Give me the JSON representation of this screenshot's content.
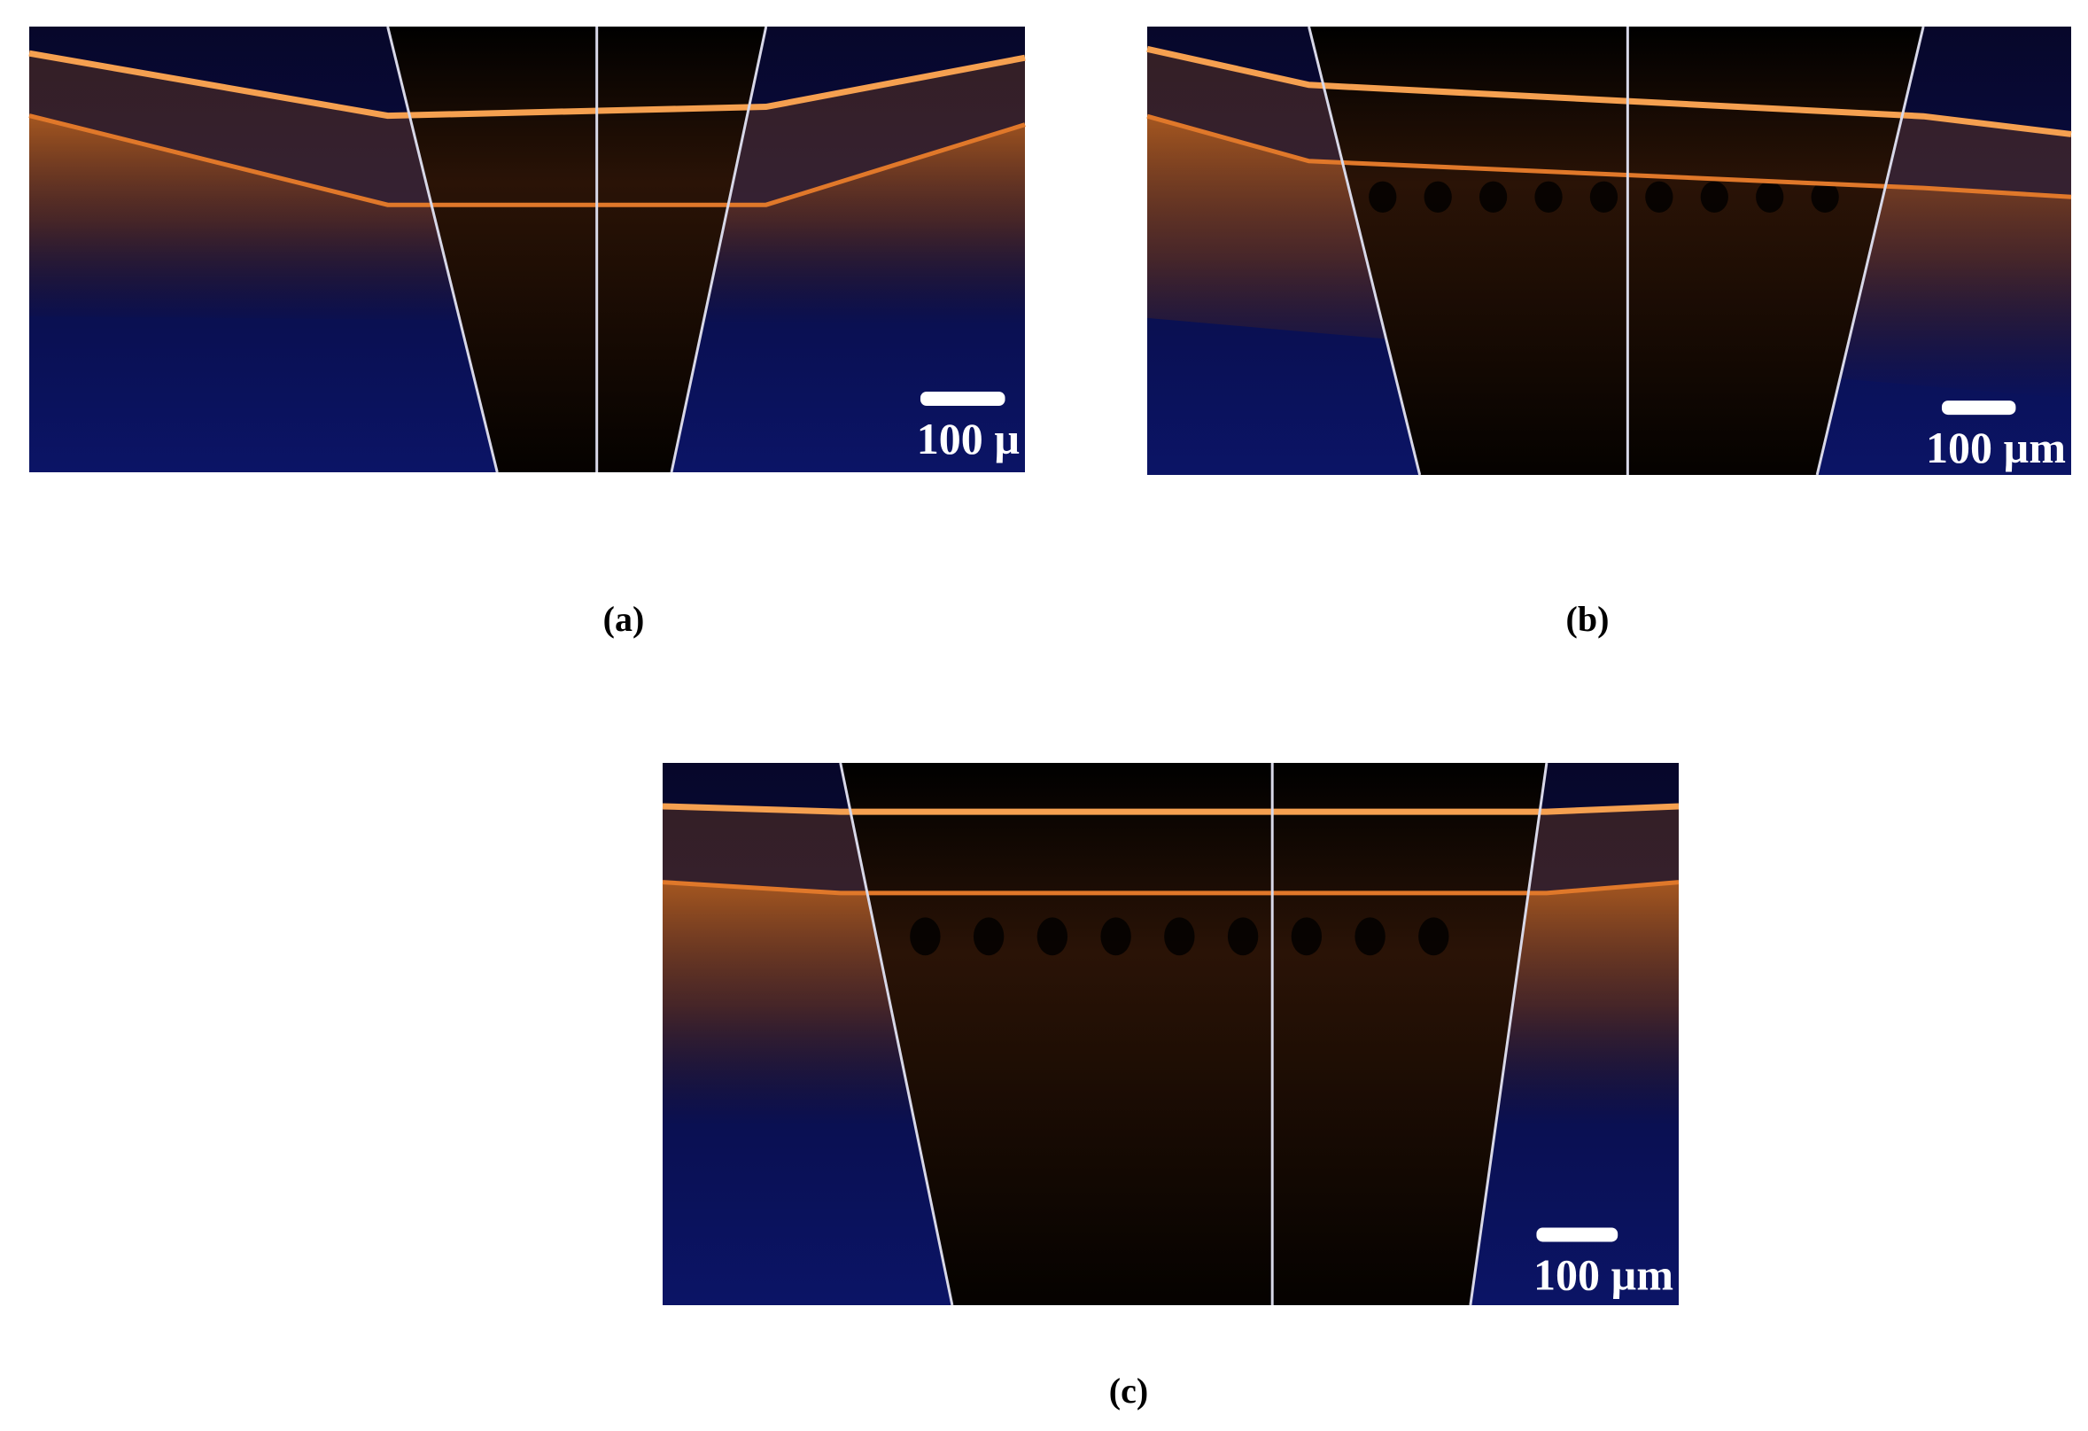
{
  "figure": {
    "panels": [
      {
        "label": "(a)",
        "scale_bar": "100 µ"
      },
      {
        "label": "(b)",
        "scale_bar": "100 µm"
      },
      {
        "label": "(c)",
        "scale_bar": "100 µm"
      }
    ]
  }
}
